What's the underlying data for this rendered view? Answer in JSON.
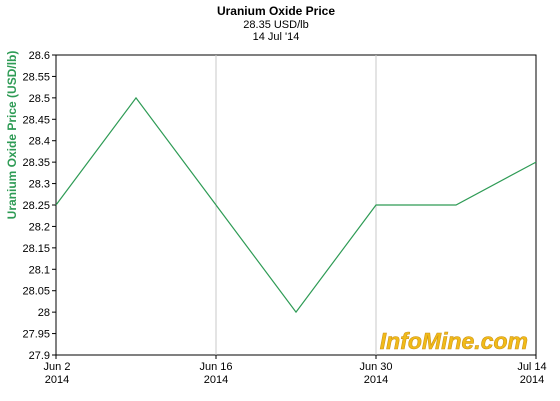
{
  "chart_data": {
    "type": "line",
    "title": "Uranium Oxide Price",
    "subtitle_lines": [
      "28.35 USD/lb",
      "14 Jul '14"
    ],
    "ylabel": "Uranium Oxide Price (USD/lb)",
    "xlabel": "",
    "x_tick_labels": [
      {
        "top": "Jun 2",
        "bottom": "2014"
      },
      {
        "top": "Jun 16",
        "bottom": "2014"
      },
      {
        "top": "Jun 30",
        "bottom": "2014"
      },
      {
        "top": "Jul 14",
        "bottom": "2014"
      }
    ],
    "y_ticks": [
      "27.9",
      "27.95",
      "28",
      "28.05",
      "28.1",
      "28.15",
      "28.2",
      "28.25",
      "28.3",
      "28.35",
      "28.4",
      "28.45",
      "28.5",
      "28.55",
      "28.6"
    ],
    "ylim": [
      27.9,
      28.6
    ],
    "x_range": [
      "2014-06-02",
      "2014-07-14"
    ],
    "grid": true,
    "series": [
      {
        "color": "#2e9b55",
        "points": [
          {
            "x": "2014-06-02",
            "y": 28.25
          },
          {
            "x": "2014-06-09",
            "y": 28.5
          },
          {
            "x": "2014-06-16",
            "y": 28.25
          },
          {
            "x": "2014-06-23",
            "y": 28.0
          },
          {
            "x": "2014-06-30",
            "y": 28.25
          },
          {
            "x": "2014-07-07",
            "y": 28.25
          },
          {
            "x": "2014-07-14",
            "y": 28.35
          }
        ]
      }
    ]
  },
  "watermark": "InfoMine.com"
}
